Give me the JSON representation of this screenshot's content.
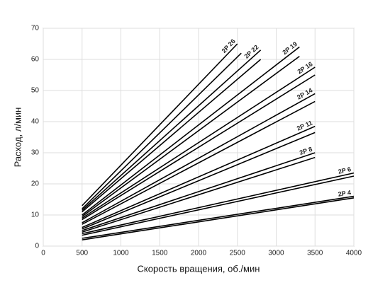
{
  "chart_data": {
    "type": "line",
    "x_label": "Скорость вращения, об./мин",
    "y_label": "Расход, л/мин",
    "xlim": [
      0,
      4000
    ],
    "xticks": [
      0,
      500,
      1000,
      1500,
      2000,
      2500,
      3000,
      3500,
      4000
    ],
    "ylim": [
      0,
      70
    ],
    "yticks": [
      0,
      10,
      20,
      30,
      40,
      50,
      60,
      70
    ],
    "grid": true,
    "color": "#000000",
    "series": [
      {
        "name": "2P 26",
        "x": [
          500,
          2500
        ],
        "values": [
          13,
          65
        ]
      },
      {
        "x": [
          500,
          2550
        ],
        "values": [
          12,
          62
        ]
      },
      {
        "name": "2P 22",
        "x": [
          500,
          2800
        ],
        "values": [
          11.5,
          63
        ]
      },
      {
        "x": [
          500,
          2800
        ],
        "values": [
          11,
          60
        ]
      },
      {
        "name": "2P 19",
        "x": [
          500,
          3300
        ],
        "values": [
          10,
          64
        ]
      },
      {
        "x": [
          500,
          3300
        ],
        "values": [
          9.5,
          61
        ]
      },
      {
        "name": "2P 16",
        "x": [
          500,
          3500
        ],
        "values": [
          9,
          57.5
        ]
      },
      {
        "x": [
          500,
          3500
        ],
        "values": [
          8.5,
          55
        ]
      },
      {
        "name": "2P 14",
        "x": [
          500,
          3500
        ],
        "values": [
          7.5,
          49
        ]
      },
      {
        "x": [
          500,
          3500
        ],
        "values": [
          7,
          46.5
        ]
      },
      {
        "name": "2P 11",
        "x": [
          500,
          3500
        ],
        "values": [
          6,
          38.5
        ]
      },
      {
        "x": [
          500,
          3500
        ],
        "values": [
          5.5,
          36.5
        ]
      },
      {
        "name": "2P 8",
        "x": [
          500,
          3500
        ],
        "values": [
          5,
          30
        ]
      },
      {
        "x": [
          500,
          3500
        ],
        "values": [
          4.5,
          28.5
        ]
      },
      {
        "name": "2P 6",
        "x": [
          500,
          4000
        ],
        "values": [
          4,
          23.5
        ]
      },
      {
        "x": [
          500,
          4000
        ],
        "values": [
          3.5,
          22.5
        ]
      },
      {
        "name": "2P 4",
        "x": [
          500,
          4000
        ],
        "values": [
          2.5,
          16
        ]
      },
      {
        "x": [
          500,
          4000
        ],
        "values": [
          2,
          15.5
        ]
      }
    ]
  }
}
